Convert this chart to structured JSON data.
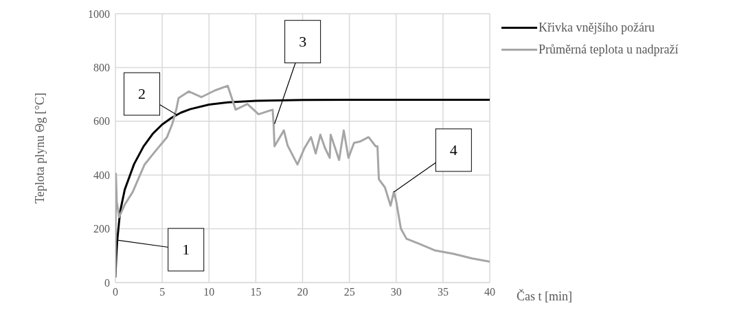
{
  "chart_data": {
    "type": "line",
    "xlabel": "Čas t [min]",
    "ylabel": "Teplota plynu Θg [°C]",
    "xlim": [
      0,
      40
    ],
    "xticks": [
      0,
      5,
      10,
      15,
      20,
      25,
      30,
      35,
      40
    ],
    "ylim": [
      0,
      1000
    ],
    "yticks": [
      0,
      200,
      400,
      600,
      800,
      1000
    ],
    "grid": true,
    "legend": "top right",
    "marker": "none",
    "line_style": "solid",
    "series": [
      {
        "name": "Křivka vnějšího požáru",
        "color": "#000000",
        "x": [
          0,
          0.1,
          0.2,
          0.5,
          1,
          2,
          3,
          4,
          5,
          6,
          7,
          8,
          10,
          12,
          15,
          20,
          25,
          30,
          40
        ],
        "values": [
          20,
          100,
          158,
          263,
          346,
          441,
          506,
          554,
          588,
          613,
          632,
          645,
          662,
          670,
          676,
          679,
          680,
          680,
          680
        ]
      },
      {
        "name": "Průměrná teplota u nadpraží",
        "color": "#a6a6a6",
        "x": [
          0,
          0.05,
          0.15,
          0.39,
          1,
          1.85,
          3.1,
          4.3,
          5.5,
          6.1,
          6.5,
          6.75,
          7.85,
          9.2,
          10.65,
          12,
          12.4,
          12.85,
          14.1,
          15.3,
          16.8,
          16.9,
          17,
          18,
          18.4,
          19.45,
          20.2,
          20.9,
          21.4,
          21.9,
          22.4,
          22.9,
          23,
          23.9,
          24.4,
          24.9,
          25.5,
          26.1,
          27.05,
          27.8,
          28,
          28.15,
          28.8,
          29.4,
          29.75,
          30,
          30.5,
          31.1,
          32.4,
          34.1,
          36.1,
          38.1,
          40
        ],
        "values": [
          20,
          405,
          300,
          243,
          290,
          337,
          438,
          490,
          540,
          592,
          643,
          686,
          711,
          690,
          715,
          732,
          690,
          643,
          664,
          626,
          643,
          592,
          507,
          566,
          510,
          439,
          500,
          541,
          480,
          550,
          500,
          464,
          550,
          456,
          566,
          464,
          520,
          524,
          541,
          507,
          507,
          384,
          354,
          286,
          337,
          303,
          201,
          163,
          145,
          120,
          107,
          90,
          78
        ]
      }
    ],
    "annotations": [
      {
        "text": "1",
        "x": 0.2,
        "y": 158
      },
      {
        "text": "2",
        "x": 6.5,
        "y": 625
      },
      {
        "text": "3",
        "x": 17,
        "y": 590
      },
      {
        "text": "4",
        "x": 29.75,
        "y": 337
      }
    ]
  }
}
